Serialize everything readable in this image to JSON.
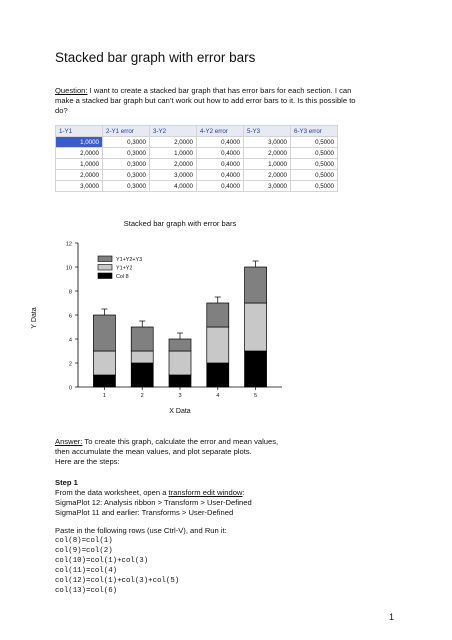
{
  "title": "Stacked bar graph with error bars",
  "question": {
    "label": "Question:",
    "lines": [
      " I want to create a stacked bar graph that has error bars for each section. I can",
      "make a stacked bar graph but can’t work out how to add error bars to it. Is this possible to",
      "do?"
    ]
  },
  "worksheet": {
    "headers": [
      "1-Y1",
      "2-Y1 error",
      "3-Y2",
      "4-Y2 error",
      "5-Y3",
      "6-Y3 error"
    ],
    "rows": [
      [
        "1,0000",
        "0,3000",
        "2,0000",
        "0,4000",
        "3,0000",
        "0,5000"
      ],
      [
        "2,0000",
        "0,3000",
        "1,0000",
        "0,4000",
        "2,0000",
        "0,5000"
      ],
      [
        "1,0000",
        "0,3000",
        "2,0000",
        "0,4000",
        "1,0000",
        "0,5000"
      ],
      [
        "2,0000",
        "0,3000",
        "3,0000",
        "0,4000",
        "2,0000",
        "0,5000"
      ],
      [
        "3,0000",
        "0,3000",
        "4,0000",
        "0,4000",
        "3,0000",
        "0,5000"
      ]
    ]
  },
  "chart_data": {
    "type": "bar",
    "stacked": true,
    "title": "Stacked bar graph with error bars",
    "xlabel": "X Data",
    "ylabel": "Y Data",
    "categories": [
      "1",
      "2",
      "3",
      "4",
      "5"
    ],
    "yticks": [
      "0",
      "2",
      "4",
      "6",
      "8",
      "10",
      "12"
    ],
    "ylim": [
      0,
      12
    ],
    "xlim": [
      0.3,
      5.7
    ],
    "legend_placement": "top-left",
    "series": [
      {
        "name": "Col 8",
        "values": [
          1,
          2,
          1,
          2,
          3
        ],
        "errors": [
          0.3,
          0.3,
          0.3,
          0.3,
          0.3
        ],
        "color": "#000000"
      },
      {
        "name": "Y1+Y2",
        "values": [
          2,
          1,
          2,
          3,
          4
        ],
        "errors": [
          0.4,
          0.4,
          0.4,
          0.4,
          0.4
        ],
        "color": "#c8c8c8"
      },
      {
        "name": "Y1+Y2+Y3",
        "values": [
          3,
          2,
          1,
          2,
          3
        ],
        "errors": [
          0.5,
          0.5,
          0.5,
          0.5,
          0.5
        ],
        "color": "#808080"
      }
    ],
    "legend_order": [
      "Y1+Y2+Y3",
      "Y1+Y2",
      "Col 8"
    ]
  },
  "answer": {
    "label": "Answer:",
    "lines": [
      " To create this graph,  calculate the error and mean values,",
      "then accumulate the mean values, and plot separate plots.",
      "Here are the steps:"
    ]
  },
  "step1": {
    "heading": "Step 1",
    "intro_prefix": "From the data worksheet, open a ",
    "intro_link": "transform edit window",
    "intro_suffix": ":",
    "line2": "SigmaPlot 12: Analysis ribbon > Transform > User-Defined",
    "line3": "SigmaPlot 11 and earlier: Transforms > User-Defined",
    "paste": "Paste in the following rows (use Ctrl-V), and Run it:",
    "code": [
      "col(8)=col(1)",
      "col(9)=col(2)",
      "col(10)=col(1)+col(3)",
      "col(11)=col(4)",
      "col(12)=col(1)+col(3)+col(5)",
      "col(13)=col(6)"
    ]
  },
  "page_number": "1"
}
